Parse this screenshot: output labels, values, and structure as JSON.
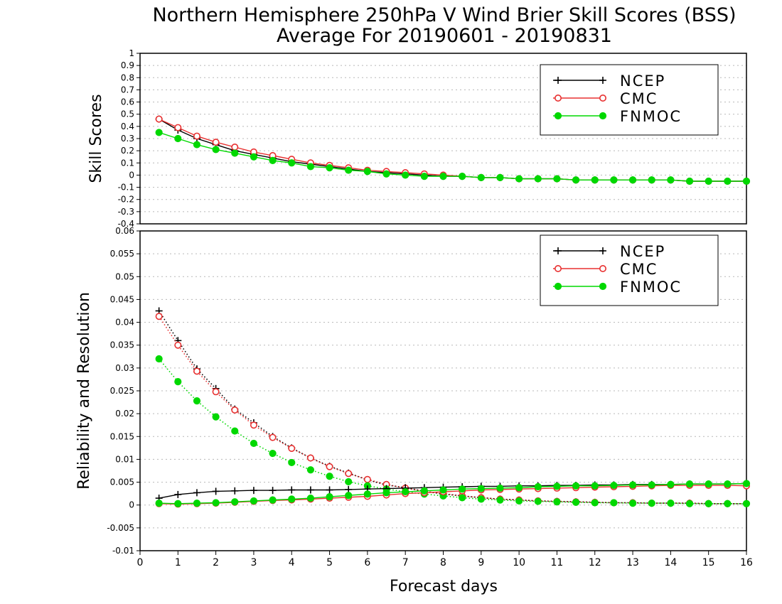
{
  "chart_data": [
    {
      "type": "line",
      "title": "Northern Hemisphere 250hPa V Wind Brier Skill Scores (BSS)",
      "subtitle": "Average For 20190601 - 20190831",
      "ylabel": "Skill Scores",
      "xlabel": "",
      "xlim": [
        0,
        16
      ],
      "ylim": [
        -0.4,
        1
      ],
      "yticks": [
        "1",
        "0.9",
        "0.8",
        "0.7",
        "0.6",
        "0.5",
        "0.4",
        "0.3",
        "0.2",
        "0.1",
        "0",
        "-0.1",
        "-0.2",
        "-0.3",
        "-0.4"
      ],
      "grid": true,
      "legend": "top-right",
      "x": [
        0.5,
        1,
        1.5,
        2,
        2.5,
        3,
        3.5,
        4,
        4.5,
        5,
        5.5,
        6,
        6.5,
        7,
        7.5,
        8,
        8.5,
        9,
        9.5,
        10,
        10.5,
        11,
        11.5,
        12,
        12.5,
        13,
        13.5,
        14,
        14.5,
        15,
        15.5,
        16
      ],
      "series": [
        {
          "name": "NCEP",
          "color": "#000000",
          "marker": "plus",
          "values": [
            0.46,
            0.37,
            0.3,
            0.25,
            0.2,
            0.17,
            0.14,
            0.11,
            0.09,
            0.07,
            0.05,
            0.03,
            0.02,
            0.01,
            0.0,
            -0.01,
            -0.01,
            -0.02,
            -0.02,
            -0.03,
            -0.03,
            -0.03,
            -0.04,
            -0.04,
            -0.04,
            -0.04,
            -0.04,
            -0.04,
            -0.05,
            -0.05,
            -0.05,
            -0.05
          ]
        },
        {
          "name": "CMC",
          "color": "#e83030",
          "marker": "open-circle",
          "values": [
            0.46,
            0.39,
            0.32,
            0.27,
            0.23,
            0.19,
            0.16,
            0.13,
            0.1,
            0.08,
            0.06,
            0.04,
            0.03,
            0.02,
            0.01,
            0.0,
            -0.01,
            -0.02,
            -0.02,
            -0.03,
            -0.03,
            -0.03,
            -0.04,
            -0.04,
            -0.04,
            -0.04,
            -0.04,
            -0.04,
            -0.05,
            -0.05,
            -0.05,
            -0.05
          ]
        },
        {
          "name": "FNMOC",
          "color": "#00d800",
          "marker": "filled-circle",
          "values": [
            0.35,
            0.3,
            0.25,
            0.21,
            0.18,
            0.15,
            0.12,
            0.1,
            0.07,
            0.06,
            0.04,
            0.03,
            0.01,
            0.0,
            -0.01,
            -0.01,
            -0.01,
            -0.02,
            -0.02,
            -0.03,
            -0.03,
            -0.03,
            -0.04,
            -0.04,
            -0.04,
            -0.04,
            -0.04,
            -0.04,
            -0.05,
            -0.05,
            -0.05,
            -0.05
          ]
        }
      ]
    },
    {
      "type": "line",
      "title": "",
      "ylabel": "Reliability and Resolution",
      "xlabel": "Forecast days",
      "xlim": [
        0,
        16
      ],
      "ylim": [
        -0.01,
        0.06
      ],
      "xticks": [
        "0",
        "1",
        "2",
        "3",
        "4",
        "5",
        "6",
        "7",
        "8",
        "9",
        "10",
        "11",
        "12",
        "13",
        "14",
        "15",
        "16"
      ],
      "yticks": [
        "0.06",
        "0.055",
        "0.05",
        "0.045",
        "0.04",
        "0.035",
        "0.03",
        "0.025",
        "0.02",
        "0.015",
        "0.01",
        "0.005",
        "0",
        "-0.005",
        "-0.01"
      ],
      "grid": true,
      "legend": "top-right",
      "x": [
        0.5,
        1,
        1.5,
        2,
        2.5,
        3,
        3.5,
        4,
        4.5,
        5,
        5.5,
        6,
        6.5,
        7,
        7.5,
        8,
        8.5,
        9,
        9.5,
        10,
        10.5,
        11,
        11.5,
        12,
        12.5,
        13,
        13.5,
        14,
        14.5,
        15,
        15.5,
        16
      ],
      "series": [
        {
          "name": "NCEP",
          "color": "#000000",
          "marker": "plus",
          "style": "dotted",
          "values": [
            0.0425,
            0.036,
            0.0298,
            0.0255,
            0.021,
            0.018,
            0.015,
            0.0125,
            0.0103,
            0.0085,
            0.007,
            0.0055,
            0.0044,
            0.0038,
            0.003,
            0.0024,
            0.002,
            0.0016,
            0.0013,
            0.0011,
            0.0009,
            0.0008,
            0.0007,
            0.0006,
            0.0005,
            0.0005,
            0.0004,
            0.0004,
            0.0004,
            0.0003,
            0.0003,
            0.0003
          ]
        },
        {
          "name": "CMC",
          "color": "#e83030",
          "marker": "open-circle",
          "style": "dotted",
          "values": [
            0.0413,
            0.035,
            0.0293,
            0.0248,
            0.0208,
            0.0175,
            0.0148,
            0.0124,
            0.0103,
            0.0084,
            0.0069,
            0.0056,
            0.0045,
            0.0037,
            0.003,
            0.0025,
            0.002,
            0.0016,
            0.0013,
            0.0011,
            0.0009,
            0.0008,
            0.0007,
            0.0006,
            0.0005,
            0.0005,
            0.0004,
            0.0004,
            0.0004,
            0.0003,
            0.0003,
            0.0003
          ]
        },
        {
          "name": "FNMOC",
          "color": "#00d800",
          "marker": "filled-circle",
          "style": "dotted",
          "values": [
            0.032,
            0.027,
            0.0228,
            0.0193,
            0.0162,
            0.0135,
            0.0113,
            0.0093,
            0.0077,
            0.0063,
            0.0051,
            0.0042,
            0.0035,
            0.0029,
            0.0024,
            0.002,
            0.0016,
            0.0013,
            0.0011,
            0.0009,
            0.0008,
            0.0007,
            0.0006,
            0.0005,
            0.0005,
            0.0004,
            0.0004,
            0.0004,
            0.0003,
            0.0003,
            0.0003,
            0.0003
          ]
        },
        {
          "name": "",
          "color": "#000000",
          "marker": "plus",
          "style": "solid",
          "values": [
            0.0015,
            0.0023,
            0.0027,
            0.003,
            0.0031,
            0.0032,
            0.0032,
            0.0033,
            0.0033,
            0.0033,
            0.0034,
            0.0035,
            0.0036,
            0.0037,
            0.0038,
            0.0039,
            0.004,
            0.0041,
            0.0041,
            0.0042,
            0.0042,
            0.0043,
            0.0043,
            0.0044,
            0.0044,
            0.0045,
            0.0045,
            0.0045,
            0.0046,
            0.0046,
            0.0046,
            0.0047
          ]
        },
        {
          "name": "",
          "color": "#e83030",
          "marker": "open-circle",
          "style": "solid",
          "values": [
            0.0003,
            0.0002,
            0.0003,
            0.0004,
            0.0006,
            0.0008,
            0.001,
            0.0011,
            0.0013,
            0.0015,
            0.0017,
            0.0019,
            0.0022,
            0.0025,
            0.0027,
            0.0029,
            0.0031,
            0.0033,
            0.0034,
            0.0035,
            0.0036,
            0.0037,
            0.0038,
            0.0039,
            0.004,
            0.0041,
            0.0042,
            0.0043,
            0.0043,
            0.0043,
            0.0043,
            0.0042
          ]
        },
        {
          "name": "",
          "color": "#00d800",
          "marker": "filled-circle",
          "style": "solid",
          "values": [
            0.0004,
            0.0003,
            0.0004,
            0.0005,
            0.0007,
            0.0009,
            0.0011,
            0.0013,
            0.0015,
            0.0018,
            0.0021,
            0.0024,
            0.0027,
            0.0029,
            0.0031,
            0.0033,
            0.0035,
            0.0036,
            0.0037,
            0.0038,
            0.004,
            0.0041,
            0.0042,
            0.0042,
            0.0043,
            0.0044,
            0.0044,
            0.0045,
            0.0046,
            0.0046,
            0.0046,
            0.0047
          ]
        }
      ]
    }
  ]
}
